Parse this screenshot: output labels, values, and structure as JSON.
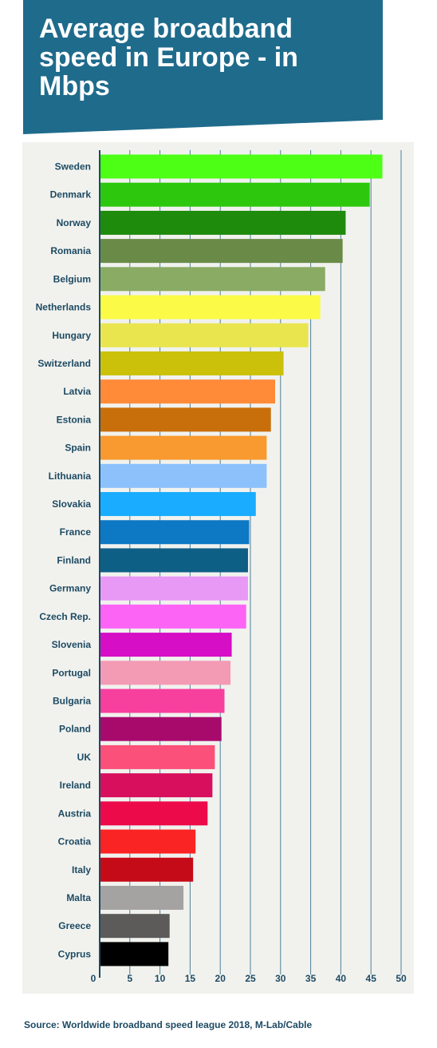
{
  "title": "Average broadband speed in Europe - in Mbps",
  "source": "Source: Worldwide broadband speed league 2018, M-Lab/Cable",
  "colors": {
    "banner": "#1f6b8c",
    "plot_background": "#f1f2ee",
    "axis": "#1d4a63",
    "gridline": "#4f7f99",
    "label_text": "#1d4a63"
  },
  "chart_data": {
    "type": "bar",
    "orientation": "horizontal",
    "categories": [
      "Sweden",
      "Denmark",
      "Norway",
      "Romania",
      "Belgium",
      "Netherlands",
      "Hungary",
      "Switzerland",
      "Latvia",
      "Estonia",
      "Spain",
      "Lithuania",
      "Slovakia",
      "France",
      "Finland",
      "Germany",
      "Czech Rep.",
      "Slovenia",
      "Portugal",
      "Bulgaria",
      "Poland",
      "UK",
      "Ireland",
      "Austria",
      "Croatia",
      "Italy",
      "Malta",
      "Greece",
      "Cyprus"
    ],
    "values": [
      46.9,
      44.8,
      40.8,
      40.3,
      37.4,
      36.6,
      34.6,
      30.5,
      29.1,
      28.4,
      27.7,
      27.7,
      25.9,
      24.8,
      24.6,
      24.6,
      24.3,
      21.9,
      21.7,
      20.7,
      20.2,
      19.1,
      18.7,
      17.9,
      15.9,
      15.5,
      13.9,
      11.6,
      11.4
    ],
    "colors": [
      "#4cff15",
      "#2dc80e",
      "#1f8b0c",
      "#6a8b47",
      "#8aab63",
      "#fbfb47",
      "#e9e54e",
      "#ccc10a",
      "#ff8a38",
      "#c86e0a",
      "#f89a30",
      "#8cc1fc",
      "#1aadff",
      "#0d78c4",
      "#0e5f85",
      "#e899f6",
      "#fc64f6",
      "#d60ec6",
      "#f39ab4",
      "#f73f9e",
      "#a80a6c",
      "#fb5079",
      "#d80f5d",
      "#ec0a4b",
      "#fb2424",
      "#c60b18",
      "#a5a2a2",
      "#5d5b59",
      "#000000"
    ],
    "xlim": [
      0,
      50
    ],
    "x_ticks": [
      0,
      5,
      10,
      15,
      20,
      25,
      30,
      35,
      40,
      45,
      50
    ],
    "xlabel": "",
    "ylabel": "",
    "grid": true
  }
}
